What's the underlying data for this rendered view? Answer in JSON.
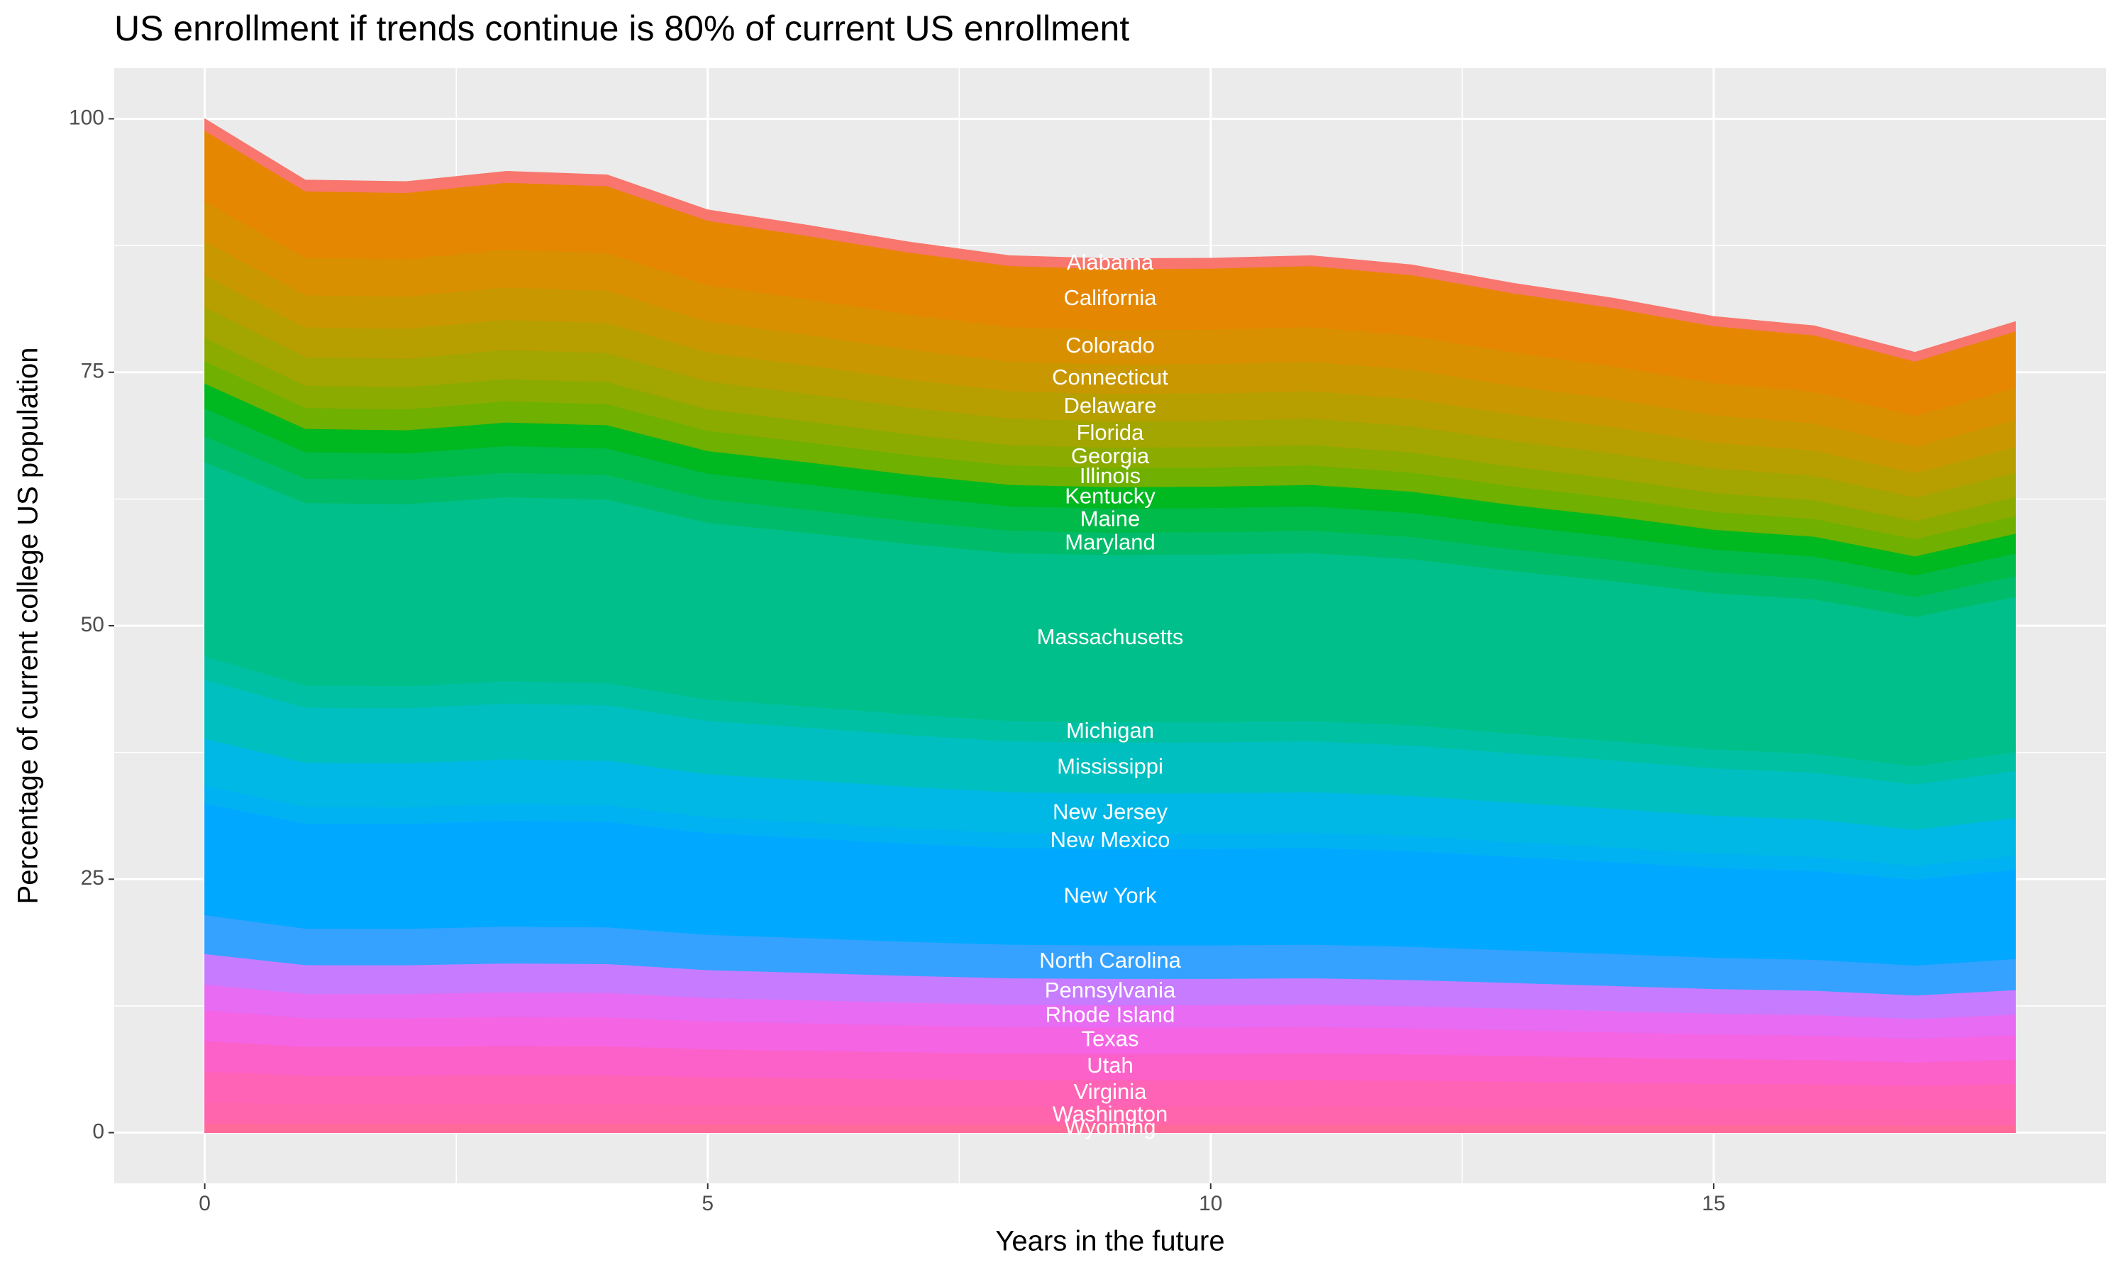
{
  "chart_data": {
    "type": "stacked_area",
    "title": "US enrollment if trends continue is 80% of current US enrollment",
    "x_label": "Years in the future",
    "y_label": "Percentage of current college US population",
    "x": [
      0,
      1,
      2,
      3,
      4,
      5,
      6,
      7,
      8,
      9,
      10,
      11,
      12,
      13,
      14,
      15,
      16,
      17,
      18
    ],
    "xlim": [
      -0.9,
      18.9
    ],
    "xticks": [
      0,
      5,
      10,
      15
    ],
    "ylim": [
      -5,
      105
    ],
    "yticks": [
      0,
      25,
      50,
      75,
      100
    ],
    "grid": true,
    "series": [
      {
        "name": "Alabama",
        "color": "#F8766D",
        "values": [
          1.16,
          1.09,
          1.09,
          1.1,
          1.1,
          1.06,
          1.04,
          1.02,
          1.0,
          1.0,
          1.0,
          1.0,
          0.99,
          0.97,
          0.96,
          0.93,
          0.92,
          0.89,
          0.93
        ]
      },
      {
        "name": "California",
        "color": "#E58700",
        "values": [
          6.96,
          6.54,
          6.53,
          6.6,
          6.58,
          6.34,
          6.23,
          6.11,
          6.02,
          6.0,
          6.01,
          6.02,
          5.96,
          5.83,
          5.73,
          5.6,
          5.54,
          5.36,
          5.57
        ]
      },
      {
        "name": "Colorado",
        "color": "#D89000",
        "values": [
          3.94,
          3.71,
          3.7,
          3.74,
          3.73,
          3.59,
          3.53,
          3.46,
          3.41,
          3.4,
          3.4,
          3.41,
          3.38,
          3.3,
          3.25,
          3.18,
          3.14,
          3.04,
          3.16
        ]
      },
      {
        "name": "Connecticut",
        "color": "#C99800",
        "values": [
          3.36,
          3.16,
          3.16,
          3.19,
          3.18,
          3.06,
          3.01,
          2.96,
          2.91,
          2.9,
          2.9,
          2.91,
          2.88,
          2.82,
          2.77,
          2.71,
          2.68,
          2.59,
          2.69
        ]
      },
      {
        "name": "Delaware",
        "color": "#B79F00",
        "values": [
          3.13,
          2.94,
          2.94,
          2.97,
          2.96,
          2.85,
          2.8,
          2.75,
          2.71,
          2.7,
          2.7,
          2.71,
          2.68,
          2.62,
          2.58,
          2.52,
          2.49,
          2.41,
          2.51
        ]
      },
      {
        "name": "Florida",
        "color": "#A3A500",
        "values": [
          3.02,
          2.83,
          2.83,
          2.86,
          2.85,
          2.75,
          2.7,
          2.65,
          2.61,
          2.6,
          2.6,
          2.61,
          2.58,
          2.53,
          2.48,
          2.43,
          2.4,
          2.32,
          2.41
        ]
      },
      {
        "name": "Georgia",
        "color": "#8CAB00",
        "values": [
          2.32,
          2.18,
          2.18,
          2.2,
          2.19,
          2.11,
          2.08,
          2.04,
          2.01,
          2.0,
          2.0,
          2.01,
          1.99,
          1.94,
          1.91,
          1.87,
          1.85,
          1.79,
          1.86
        ]
      },
      {
        "name": "Illinois",
        "color": "#6FB000",
        "values": [
          2.2,
          2.07,
          2.07,
          2.09,
          2.08,
          2.01,
          1.97,
          1.94,
          1.91,
          1.9,
          1.9,
          1.91,
          1.89,
          1.85,
          1.81,
          1.77,
          1.75,
          1.7,
          1.76
        ]
      },
      {
        "name": "Kentucky",
        "color": "#00B81F",
        "values": [
          2.44,
          2.29,
          2.28,
          2.31,
          2.3,
          2.22,
          2.18,
          2.14,
          2.11,
          2.1,
          2.1,
          2.11,
          2.09,
          2.04,
          2.01,
          1.96,
          1.94,
          1.88,
          1.95
        ]
      },
      {
        "name": "Maine",
        "color": "#00BA4A",
        "values": [
          2.78,
          2.62,
          2.61,
          2.64,
          2.63,
          2.53,
          2.49,
          2.45,
          2.41,
          2.4,
          2.4,
          2.41,
          2.38,
          2.33,
          2.29,
          2.24,
          2.22,
          2.14,
          2.23
        ]
      },
      {
        "name": "Maryland",
        "color": "#00BC6A",
        "values": [
          2.55,
          2.4,
          2.39,
          2.42,
          2.41,
          2.32,
          2.28,
          2.24,
          2.21,
          2.2,
          2.2,
          2.21,
          2.18,
          2.14,
          2.1,
          2.05,
          2.03,
          1.96,
          2.04
        ]
      },
      {
        "name": "Massachusetts",
        "color": "#00BF8A",
        "values": [
          19.14,
          17.99,
          17.95,
          18.15,
          18.08,
          17.42,
          17.13,
          16.81,
          16.55,
          16.5,
          16.52,
          16.55,
          16.38,
          16.04,
          15.76,
          15.41,
          15.23,
          14.73,
          15.31
        ]
      },
      {
        "name": "Michigan",
        "color": "#00C0A3",
        "values": [
          2.32,
          2.18,
          2.18,
          2.2,
          2.19,
          2.11,
          2.08,
          2.04,
          2.01,
          2.0,
          2.0,
          2.01,
          1.99,
          1.94,
          1.91,
          1.87,
          1.85,
          1.79,
          1.86
        ]
      },
      {
        "name": "Mississippi",
        "color": "#00BFC0",
        "values": [
          5.8,
          5.45,
          5.44,
          5.5,
          5.48,
          5.28,
          5.19,
          5.1,
          5.02,
          5.0,
          5.01,
          5.02,
          4.97,
          4.86,
          4.78,
          4.67,
          4.62,
          4.47,
          4.64
        ]
      },
      {
        "name": "New Jersey",
        "color": "#00B8E5",
        "values": [
          4.64,
          4.36,
          4.35,
          4.4,
          4.38,
          4.22,
          4.15,
          4.08,
          4.01,
          4.0,
          4.0,
          4.01,
          3.97,
          3.89,
          3.82,
          3.74,
          3.69,
          3.57,
          3.71
        ]
      },
      {
        "name": "New Mexico",
        "color": "#00B2F2",
        "values": [
          1.74,
          1.64,
          1.63,
          1.65,
          1.64,
          1.58,
          1.56,
          1.53,
          1.5,
          1.5,
          1.5,
          1.5,
          1.49,
          1.46,
          1.43,
          1.4,
          1.38,
          1.34,
          1.39
        ]
      },
      {
        "name": "New York",
        "color": "#00A9FF",
        "values": [
          11.02,
          10.36,
          10.34,
          10.45,
          10.41,
          10.03,
          9.86,
          9.68,
          9.53,
          9.5,
          9.51,
          9.53,
          9.43,
          9.23,
          9.07,
          8.87,
          8.77,
          8.48,
          8.82
        ]
      },
      {
        "name": "North Carolina",
        "color": "#35A2FF",
        "values": [
          3.83,
          3.6,
          3.59,
          3.63,
          3.62,
          3.48,
          3.43,
          3.36,
          3.31,
          3.3,
          3.3,
          3.31,
          3.28,
          3.21,
          3.15,
          3.08,
          3.05,
          2.95,
          3.06
        ]
      },
      {
        "name": "Pennsylvania",
        "color": "#C77CFF",
        "values": [
          3.02,
          2.83,
          2.83,
          2.86,
          2.85,
          2.75,
          2.7,
          2.65,
          2.61,
          2.6,
          2.6,
          2.61,
          2.58,
          2.53,
          2.48,
          2.43,
          2.4,
          2.32,
          2.41
        ]
      },
      {
        "name": "Rhode Island",
        "color": "#E76BF3",
        "values": [
          2.55,
          2.4,
          2.39,
          2.42,
          2.41,
          2.32,
          2.28,
          2.24,
          2.21,
          2.2,
          2.2,
          2.21,
          2.18,
          2.14,
          2.1,
          2.05,
          2.03,
          1.96,
          2.04
        ]
      },
      {
        "name": "Texas",
        "color": "#F564E3",
        "values": [
          3.02,
          2.83,
          2.83,
          2.86,
          2.85,
          2.75,
          2.7,
          2.65,
          2.61,
          2.6,
          2.6,
          2.61,
          2.58,
          2.53,
          2.48,
          2.43,
          2.4,
          2.32,
          2.41
        ]
      },
      {
        "name": "Utah",
        "color": "#FC61C9",
        "values": [
          3.02,
          2.83,
          2.83,
          2.86,
          2.85,
          2.75,
          2.7,
          2.65,
          2.61,
          2.6,
          2.6,
          2.61,
          2.58,
          2.53,
          2.48,
          2.43,
          2.4,
          2.32,
          2.41
        ]
      },
      {
        "name": "Virginia",
        "color": "#FF63B6",
        "values": [
          3.02,
          2.83,
          2.83,
          2.86,
          2.85,
          2.75,
          2.7,
          2.65,
          2.61,
          2.6,
          2.6,
          2.61,
          2.58,
          2.53,
          2.48,
          2.43,
          2.4,
          2.32,
          2.41
        ]
      },
      {
        "name": "Washington",
        "color": "#FF65AC",
        "values": [
          2.09,
          1.96,
          1.96,
          1.98,
          1.97,
          1.9,
          1.87,
          1.83,
          1.81,
          1.8,
          1.8,
          1.81,
          1.79,
          1.75,
          1.72,
          1.68,
          1.66,
          1.61,
          1.67
        ]
      },
      {
        "name": "Wyoming",
        "color": "#FF6A98",
        "values": [
          0.93,
          0.87,
          0.87,
          0.88,
          0.88,
          0.84,
          0.83,
          0.82,
          0.8,
          0.8,
          0.8,
          0.8,
          0.79,
          0.78,
          0.76,
          0.75,
          0.74,
          0.71,
          0.74
        ]
      }
    ]
  }
}
